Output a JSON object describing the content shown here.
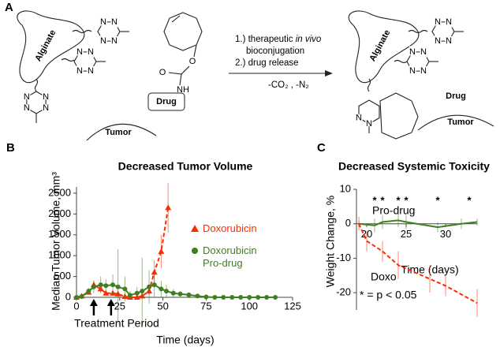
{
  "panel_a": {
    "letter": "A",
    "left_polymer": "Alginate",
    "left_target": "Tumor",
    "drug": "Drug",
    "step1_prefix": "1.) therapeutic ",
    "step1_italic": "in vivo",
    "step2": "bioconjugation",
    "step3": "2.) drug release",
    "byproducts": "-CO₂ , -N₂",
    "right_polymer": "Alginate",
    "right_drug": "Drug",
    "right_target": "Tumor",
    "atom_n": "N",
    "atom_o": "O",
    "atom_nh": "NH"
  },
  "chart_data": [
    {
      "type": "line",
      "panel_label": "B",
      "title": "Decreased Tumor Volume",
      "x_label": "Time (days)",
      "y_label": "Median Tumor Volume, mm³",
      "xlim": [
        0,
        125
      ],
      "xticks": [
        0,
        25,
        50,
        75,
        100,
        125
      ],
      "ylim": [
        0,
        2650
      ],
      "yticks": [
        0,
        500,
        1000,
        1500,
        2000,
        2500
      ],
      "series": [
        {
          "name": "Doxorubicin",
          "color": "#ff2a00",
          "marker": "triangle",
          "dashed": true,
          "x": [
            0,
            3,
            7,
            10,
            14,
            17,
            21,
            24,
            28,
            31,
            35,
            38,
            42,
            45,
            49,
            53
          ],
          "values": [
            0,
            30,
            120,
            300,
            200,
            100,
            100,
            80,
            20,
            0,
            0,
            30,
            150,
            600,
            1100,
            2150
          ],
          "errors": [
            0,
            20,
            50,
            100,
            80,
            60,
            60,
            40,
            30,
            20,
            20,
            40,
            100,
            300,
            400,
            600
          ]
        },
        {
          "name": "Doxorubicin Pro-drug",
          "color": "#3f7f1f",
          "marker": "circle",
          "dashed": false,
          "x": [
            0,
            3,
            7,
            10,
            14,
            17,
            21,
            24,
            28,
            31,
            35,
            38,
            42,
            45,
            49,
            52,
            56,
            60,
            65,
            70,
            75,
            80,
            85,
            90,
            95,
            100,
            105,
            110,
            115
          ],
          "values": [
            0,
            20,
            150,
            250,
            300,
            280,
            300,
            250,
            200,
            50,
            100,
            150,
            250,
            300,
            200,
            150,
            100,
            80,
            60,
            30,
            10,
            0,
            0,
            0,
            0,
            0,
            0,
            0,
            0
          ],
          "errors": [
            0,
            10,
            80,
            150,
            200,
            150,
            250,
            900,
            300,
            100,
            150,
            800,
            400,
            300,
            200,
            150,
            100,
            60,
            50,
            30,
            20,
            10,
            5,
            5,
            5,
            5,
            5,
            5,
            5
          ]
        }
      ],
      "annotation": {
        "text": "Treatment Period",
        "arrow_x": [
          10,
          20
        ]
      }
    },
    {
      "type": "line",
      "panel_label": "C",
      "title": "Decreased Systemic Toxicity",
      "x_label": "Time (days)",
      "y_label": "Weight Change, %",
      "xlim": [
        18.7,
        34
      ],
      "xticks": [
        20,
        25,
        30
      ],
      "ylim": [
        -25,
        10
      ],
      "yticks": [
        10,
        0,
        -10,
        -20
      ],
      "series": [
        {
          "name": "Pro-drug",
          "color": "#3f7f1f",
          "dashed": false,
          "x": [
            19,
            21,
            22,
            24,
            25,
            29,
            32,
            34
          ],
          "values": [
            0,
            -0.5,
            0.5,
            1,
            0.5,
            -1,
            0,
            0.5
          ],
          "errors": [
            1,
            2,
            2,
            2,
            2,
            1.5,
            1.5,
            1
          ]
        },
        {
          "name": "Doxo",
          "color": "#ff2a00",
          "dashed": true,
          "x": [
            19,
            20,
            22,
            24,
            28,
            30,
            34
          ],
          "values": [
            0,
            -5,
            -8,
            -12,
            -16,
            -18,
            -23
          ],
          "errors": [
            2,
            3,
            3,
            4,
            4,
            3,
            4
          ]
        }
      ],
      "significance": {
        "marker": "*",
        "x": [
          21,
          22,
          24,
          25,
          29,
          33
        ],
        "legend": "* = p < 0.05"
      }
    }
  ]
}
